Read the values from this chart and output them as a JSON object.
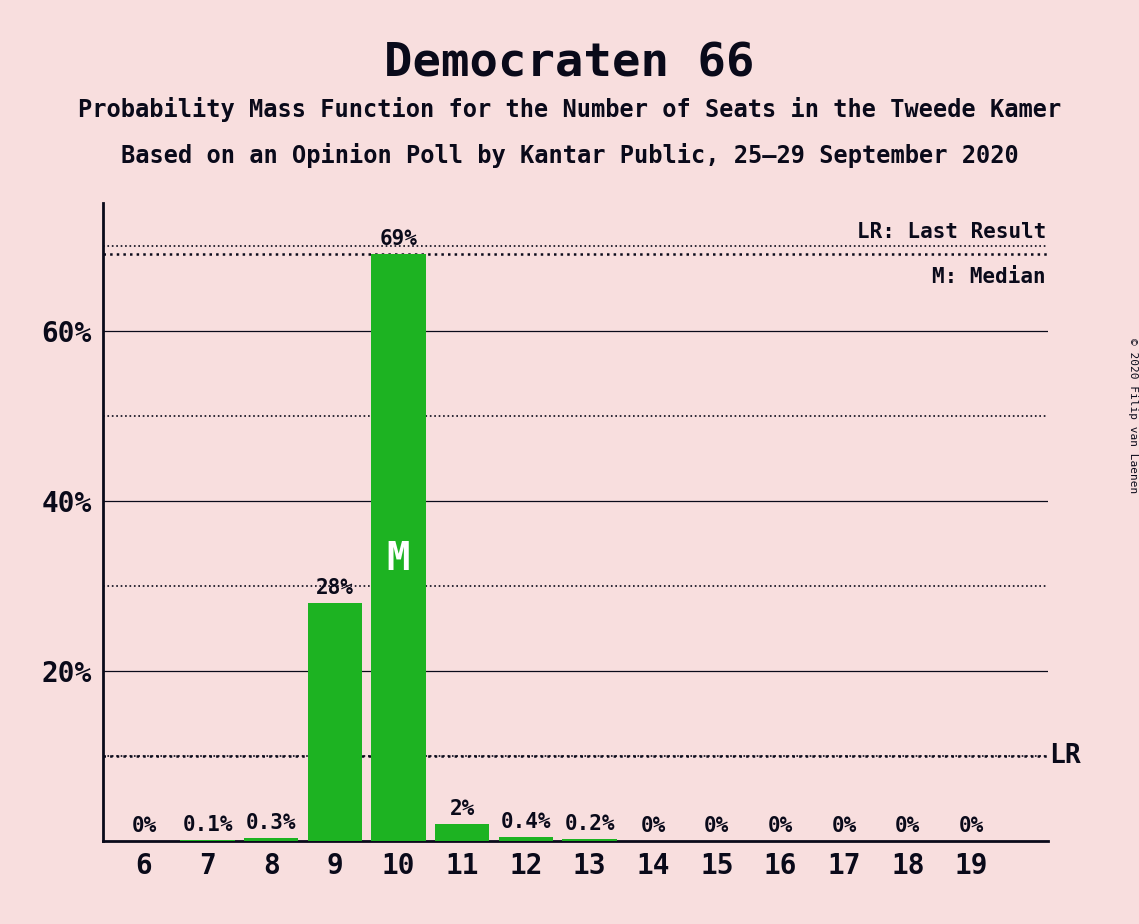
{
  "title": "Democraten 66",
  "subtitle1": "Probability Mass Function for the Number of Seats in the Tweede Kamer",
  "subtitle2": "Based on an Opinion Poll by Kantar Public, 25–29 September 2020",
  "copyright": "© 2020 Filip van Laenen",
  "categories": [
    6,
    7,
    8,
    9,
    10,
    11,
    12,
    13,
    14,
    15,
    16,
    17,
    18,
    19
  ],
  "values": [
    0.0,
    0.1,
    0.3,
    28.0,
    69.0,
    2.0,
    0.4,
    0.2,
    0.0,
    0.0,
    0.0,
    0.0,
    0.0,
    0.0
  ],
  "labels": [
    "0%",
    "0.1%",
    "0.3%",
    "28%",
    "69%",
    "2%",
    "0.4%",
    "0.2%",
    "0%",
    "0%",
    "0%",
    "0%",
    "0%",
    "0%"
  ],
  "bar_color": "#1db322",
  "median_seat": 10,
  "last_result_value": 10.0,
  "background_color": "#f8dede",
  "text_color": "#0a0a1a",
  "ylim": [
    0,
    75
  ],
  "ytick_values": [
    20,
    40,
    60
  ],
  "ytick_labels": [
    "20%",
    "40%",
    "60%"
  ],
  "grid_dotted": [
    10,
    30,
    50,
    70
  ],
  "grid_solid": [
    20,
    40,
    60
  ],
  "legend_lr": "LR: Last Result",
  "legend_m": "M: Median",
  "grid_color": "#0a0a1a",
  "title_fontsize": 34,
  "subtitle_fontsize": 17,
  "axis_fontsize": 20,
  "label_fontsize": 15,
  "median_label_fontsize": 28,
  "lr_label_fontsize": 19,
  "legend_fontsize": 15
}
